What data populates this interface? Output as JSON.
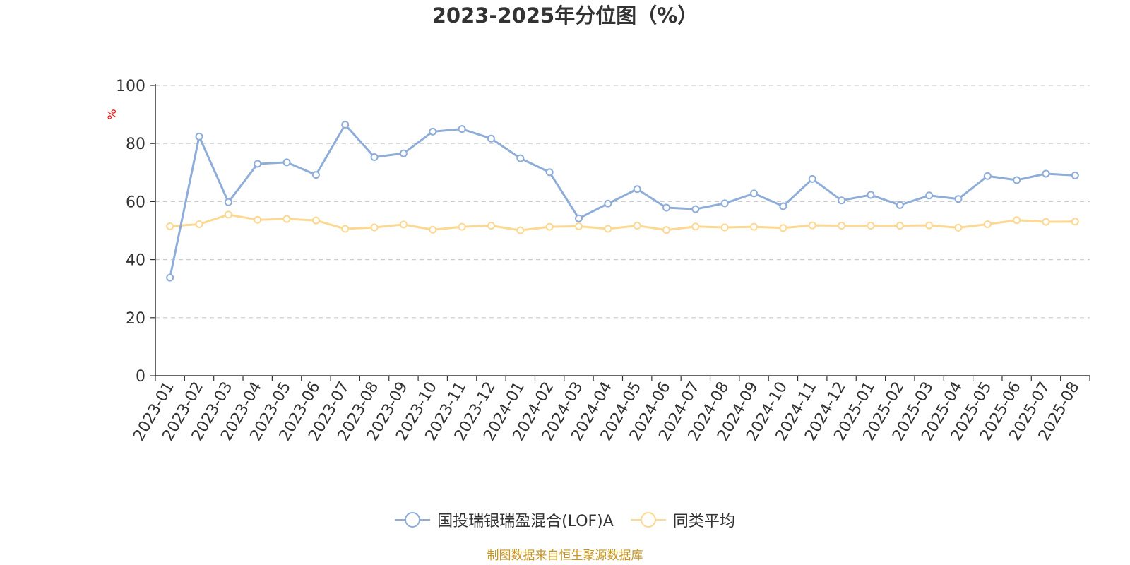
{
  "chart_data": {
    "type": "line",
    "title": "2023-2025年分位图（%）",
    "ylabel": "%",
    "xlabel": "",
    "ylim": [
      0,
      100
    ],
    "yticks": [
      0,
      20,
      40,
      60,
      80,
      100
    ],
    "grid": true,
    "legend_position": "bottom",
    "categories": [
      "2023-01",
      "2023-02",
      "2023-03",
      "2023-04",
      "2023-05",
      "2023-06",
      "2023-07",
      "2023-08",
      "2023-09",
      "2023-10",
      "2023-11",
      "2023-12",
      "2024-01",
      "2024-02",
      "2024-03",
      "2024-04",
      "2024-05",
      "2024-06",
      "2024-07",
      "2024-08",
      "2024-09",
      "2024-10",
      "2024-11",
      "2024-12",
      "2025-01",
      "2025-02",
      "2025-03",
      "2025-04",
      "2025-05",
      "2025-06",
      "2025-07",
      "2025-08"
    ],
    "series": [
      {
        "name": "国投瑞银瑞盈混合(LOF)A",
        "color": "#8eadd8",
        "values": [
          33.8,
          82.4,
          59.8,
          73.0,
          73.5,
          69.2,
          86.5,
          75.3,
          76.6,
          84.1,
          85.0,
          81.7,
          74.9,
          70.1,
          54.2,
          59.3,
          64.3,
          57.9,
          57.4,
          59.4,
          62.8,
          58.4,
          67.8,
          60.4,
          62.3,
          58.8,
          62.1,
          60.9,
          68.8,
          67.4,
          69.6,
          69.0
        ]
      },
      {
        "name": "同类平均",
        "color": "#fcd890",
        "values": [
          51.5,
          52.2,
          55.5,
          53.7,
          54.0,
          53.5,
          50.6,
          51.1,
          52.1,
          50.3,
          51.3,
          51.7,
          50.1,
          51.3,
          51.5,
          50.6,
          51.7,
          50.2,
          51.4,
          51.1,
          51.3,
          50.9,
          51.8,
          51.7,
          51.7,
          51.7,
          51.8,
          51.0,
          52.2,
          53.6,
          53.0,
          53.1
        ]
      }
    ]
  },
  "source_note": "制图数据来自恒生聚源数据库"
}
